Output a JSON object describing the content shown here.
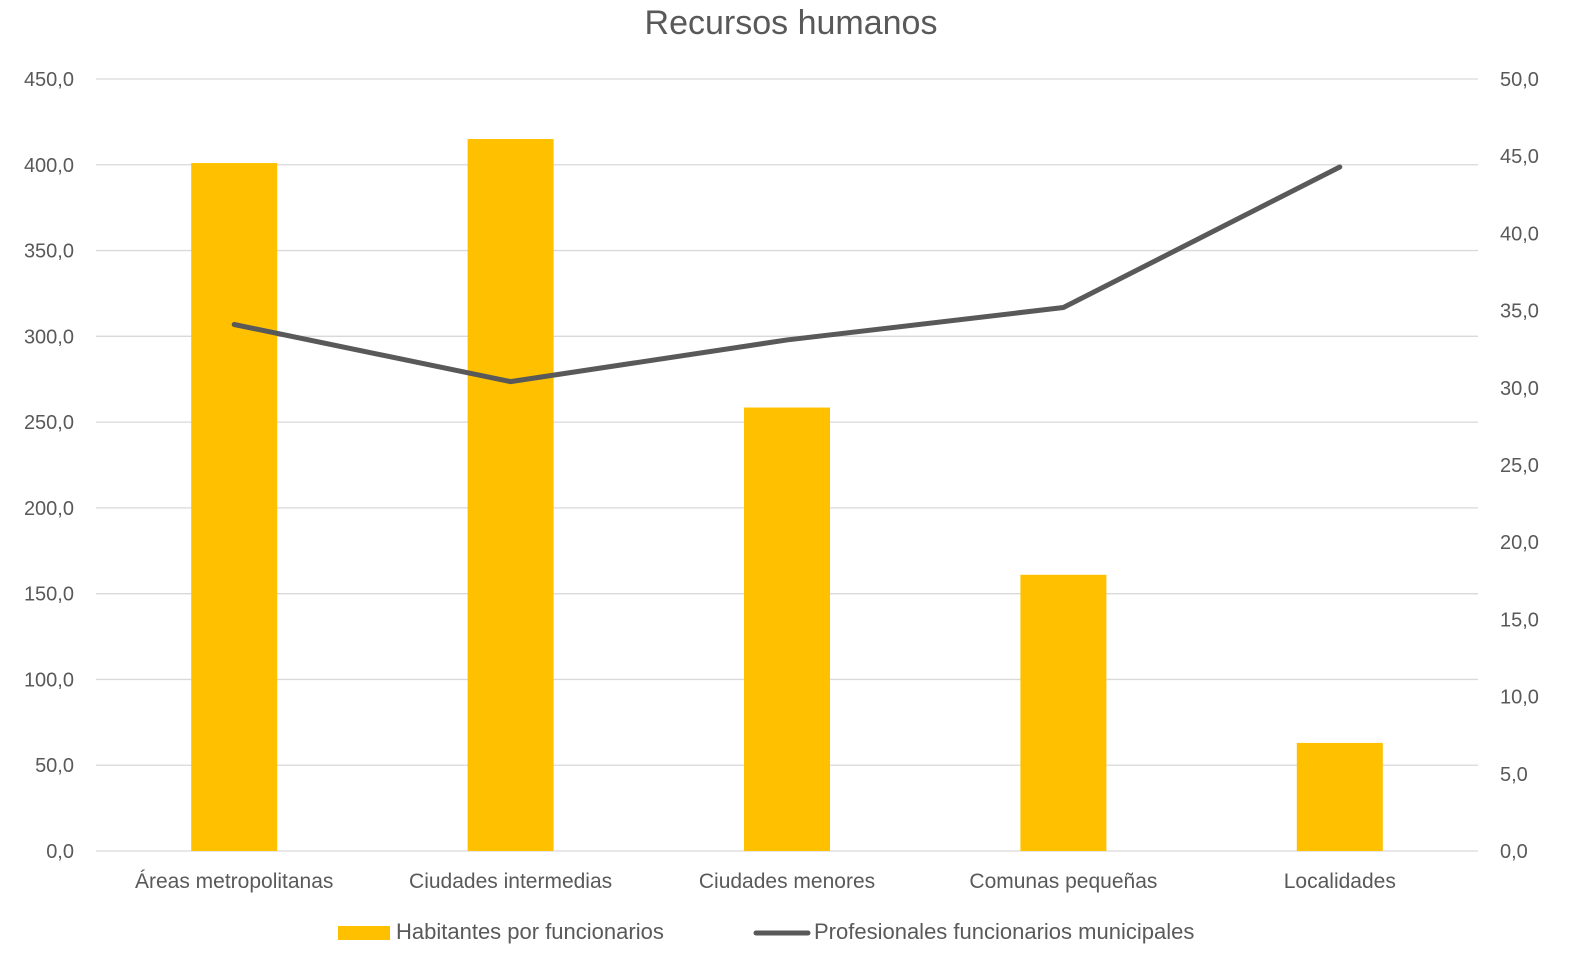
{
  "chart_data": {
    "type": "bar",
    "title": "Recursos humanos",
    "categories": [
      "Áreas metropolitanas",
      "Ciudades intermedias",
      "Ciudades menores",
      "Comunas pequeñas",
      "Localidades"
    ],
    "series": [
      {
        "name": "Habitantes por funcionarios",
        "type": "bar",
        "axis": "left",
        "color": "#FFC000",
        "values": [
          401.0,
          415.0,
          258.5,
          161.0,
          63.0
        ]
      },
      {
        "name": "Profesionales funcionarios municipales",
        "type": "line",
        "axis": "right",
        "color": "#595959",
        "values": [
          34.1,
          30.4,
          33.1,
          35.2,
          44.3
        ]
      }
    ],
    "y_left": {
      "min": 0,
      "max": 450,
      "step": 50,
      "ticks": [
        "0,0",
        "50,0",
        "100,0",
        "150,0",
        "200,0",
        "250,0",
        "300,0",
        "350,0",
        "400,0",
        "450,0"
      ]
    },
    "y_right": {
      "min": 0,
      "max": 50,
      "step": 5,
      "ticks": [
        "0,0",
        "5,0",
        "10,0",
        "15,0",
        "20,0",
        "25,0",
        "30,0",
        "35,0",
        "40,0",
        "45,0",
        "50,0"
      ]
    },
    "grid": true,
    "legend": "bottom"
  }
}
